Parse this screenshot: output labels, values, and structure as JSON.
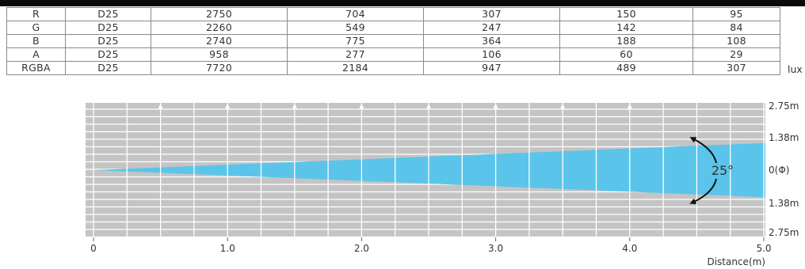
{
  "table": {
    "rows": [
      {
        "color": "R",
        "setting": "D25",
        "values": [
          "2750",
          "704",
          "307",
          "150",
          "95"
        ]
      },
      {
        "color": "G",
        "setting": "D25",
        "values": [
          "2260",
          "549",
          "247",
          "142",
          "84"
        ]
      },
      {
        "color": "B",
        "setting": "D25",
        "values": [
          "2740",
          "775",
          "364",
          "188",
          "108"
        ]
      },
      {
        "color": "A",
        "setting": "D25",
        "values": [
          "958",
          "277",
          "106",
          "60",
          "29"
        ]
      },
      {
        "color": "RGBA",
        "setting": "D25",
        "values": [
          "7720",
          "2184",
          "947",
          "489",
          "307"
        ]
      }
    ],
    "unit": "lux"
  },
  "diagram": {
    "beam_angle": "25°",
    "x_axis": {
      "ticks": [
        {
          "value": 0,
          "label": "0"
        },
        {
          "value": 1.0,
          "label": "1.0"
        },
        {
          "value": 2.0,
          "label": "2.0"
        },
        {
          "value": 3.0,
          "label": "3.0"
        },
        {
          "value": 4.0,
          "label": "4.0"
        },
        {
          "value": 5.0,
          "label": "5.0"
        }
      ],
      "label": "Distance(m)"
    },
    "y_labels": {
      "top_outer": "2.75m",
      "top_inner": "1.38m",
      "center": "0(Φ)",
      "bottom_inner": "1.38m",
      "bottom_outer": "2.75m"
    },
    "arrow_positions": [
      0.5,
      1.0,
      1.5,
      2.0,
      2.5,
      3.0,
      3.5,
      4.0
    ],
    "colors": {
      "panel": "#c4c4c4",
      "grid": "#ffffff",
      "beam": "#5bc4ea",
      "border": "#8a8a8a",
      "text": "#333333"
    }
  }
}
